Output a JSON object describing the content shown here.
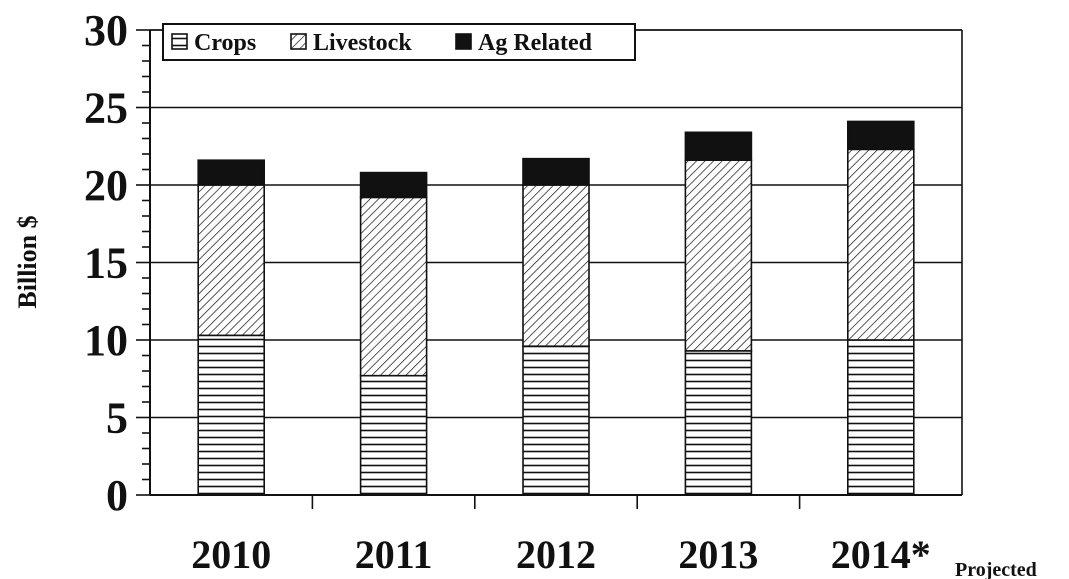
{
  "chart_data": {
    "type": "bar",
    "stacked": true,
    "categories": [
      "2010",
      "2011",
      "2012",
      "2013",
      "2014*"
    ],
    "category_note": "Projected",
    "ylabel": "Billion $",
    "xlabel": "",
    "ylim": [
      0,
      30
    ],
    "yticks": [
      "0",
      "5",
      "10",
      "15",
      "20",
      "25",
      "30"
    ],
    "grid": true,
    "legend_position": "top-left",
    "series": [
      {
        "name": "Crops",
        "values": [
          10.3,
          7.7,
          9.6,
          9.3,
          10.0
        ],
        "pattern": "horizontal-lines"
      },
      {
        "name": "Livestock",
        "values": [
          9.7,
          11.5,
          10.4,
          12.3,
          12.3
        ],
        "pattern": "diagonal-lines"
      },
      {
        "name": "Ag Related",
        "values": [
          1.6,
          1.6,
          1.7,
          1.8,
          1.8
        ],
        "pattern": "solid"
      }
    ],
    "colors": {
      "ink": "#111111",
      "background": "#ffffff"
    }
  }
}
